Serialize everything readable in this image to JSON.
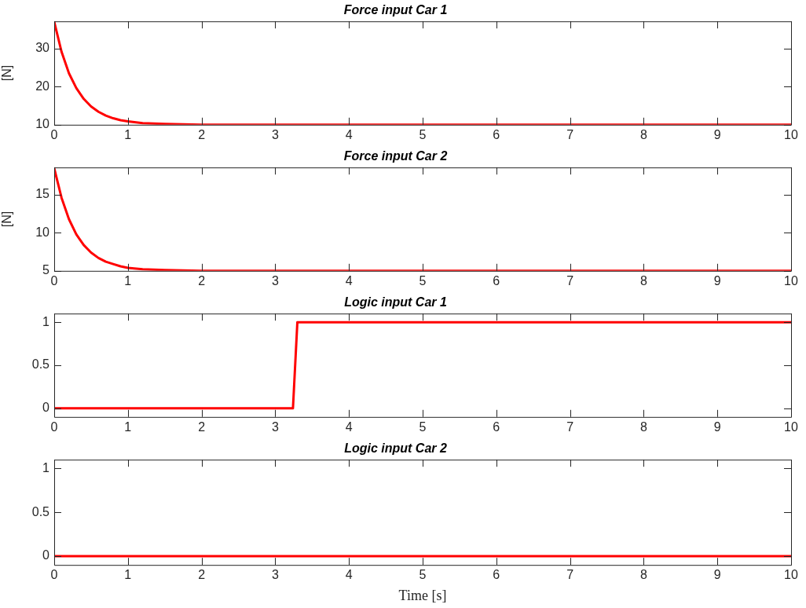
{
  "chart_data": [
    {
      "type": "line",
      "title": "Force input Car 1",
      "ylabel": "[N]",
      "x": [
        0,
        0.1,
        0.2,
        0.3,
        0.4,
        0.5,
        0.6,
        0.7,
        0.8,
        0.9,
        1.0,
        1.2,
        1.5,
        2,
        10
      ],
      "series": [
        {
          "color": "#ff0000",
          "values": [
            37,
            29.1,
            23.5,
            19.6,
            16.8,
            14.8,
            13.4,
            12.4,
            11.7,
            11.2,
            10.9,
            10.4,
            10.2,
            10,
            10
          ]
        }
      ],
      "xlim": [
        0,
        10
      ],
      "xticks": [
        0,
        1,
        2,
        3,
        4,
        5,
        6,
        7,
        8,
        9,
        10
      ],
      "ylim": [
        10,
        37.1
      ],
      "yticks": [
        10,
        20,
        30
      ],
      "grid": false,
      "legend": false,
      "marker": "none",
      "line_style": "solid"
    },
    {
      "type": "line",
      "title": "Force input Car 2",
      "ylabel": "[N]",
      "x": [
        0,
        0.1,
        0.2,
        0.3,
        0.4,
        0.5,
        0.6,
        0.7,
        0.8,
        0.9,
        1.0,
        1.2,
        1.5,
        2,
        10
      ],
      "series": [
        {
          "color": "#ff0000",
          "values": [
            18.5,
            14.6,
            11.8,
            9.8,
            8.4,
            7.4,
            6.7,
            6.2,
            5.9,
            5.6,
            5.4,
            5.2,
            5.1,
            5,
            5
          ]
        }
      ],
      "xlim": [
        0,
        10
      ],
      "xticks": [
        0,
        1,
        2,
        3,
        4,
        5,
        6,
        7,
        8,
        9,
        10
      ],
      "ylim": [
        5,
        18.6
      ],
      "yticks": [
        5,
        10,
        15
      ],
      "grid": false,
      "legend": false,
      "marker": "none",
      "line_style": "solid"
    },
    {
      "type": "line",
      "title": "Logic input Car 1",
      "x": [
        0,
        3.24,
        3.3,
        10
      ],
      "series": [
        {
          "color": "#ff0000",
          "values": [
            0,
            0,
            1,
            1
          ]
        }
      ],
      "xlim": [
        0,
        10
      ],
      "xticks": [
        0,
        1,
        2,
        3,
        4,
        5,
        6,
        7,
        8,
        9,
        10
      ],
      "ylim": [
        -0.1,
        1.1
      ],
      "yticks": [
        0,
        0.5,
        1
      ],
      "grid": false,
      "legend": false,
      "marker": "none",
      "line_style": "solid"
    },
    {
      "type": "line",
      "title": "Logic input Car 2",
      "xlabel": "Time [s]",
      "x": [
        0,
        10
      ],
      "series": [
        {
          "color": "#ff0000",
          "values": [
            0,
            0
          ]
        }
      ],
      "xlim": [
        0,
        10
      ],
      "xticks": [
        0,
        1,
        2,
        3,
        4,
        5,
        6,
        7,
        8,
        9,
        10
      ],
      "ylim": [
        -0.1,
        1.1
      ],
      "yticks": [
        0,
        0.5,
        1
      ],
      "grid": false,
      "legend": false,
      "marker": "none",
      "line_style": "solid"
    }
  ]
}
